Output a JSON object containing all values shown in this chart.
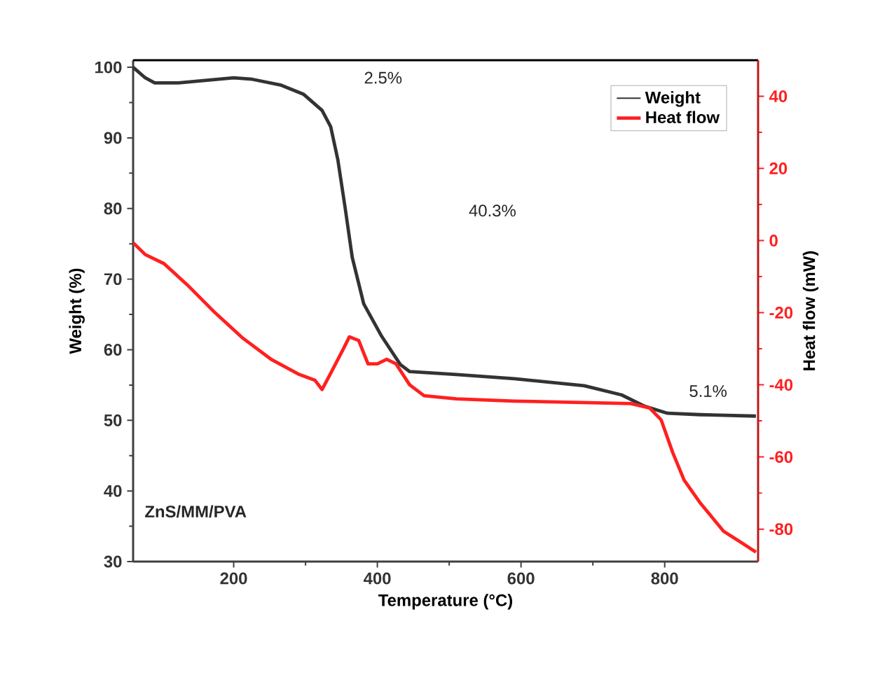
{
  "chart_data": {
    "type": "line",
    "xlabel": "Temperature (°C)",
    "ylabel": "Weight (%)",
    "y2label": "Heat flow (mW)",
    "xlim": [
      60,
      930
    ],
    "xticks": [
      200,
      400,
      600,
      800
    ],
    "ylim": [
      30,
      101
    ],
    "yticks": [
      30,
      40,
      50,
      60,
      70,
      80,
      90,
      100
    ],
    "y2lim": [
      -89,
      50
    ],
    "y2ticks": [
      -80,
      -60,
      -40,
      -20,
      0,
      20,
      40
    ],
    "legend": "top right",
    "annotations": [
      "2.5%",
      "40.3%",
      "5.1%",
      "**ZnS/MM/PVA**"
    ],
    "series": [
      {
        "name": "Weight",
        "color": "#333333",
        "x": [
          60,
          77,
          90,
          123,
          200,
          226,
          265,
          297,
          323,
          335,
          345,
          355,
          365,
          381,
          406,
          432,
          445,
          510,
          591,
          688,
          740,
          772,
          804,
          850,
          927
        ],
        "values": [
          100,
          98.5,
          97.8,
          97.8,
          98.5,
          98.3,
          97.5,
          96.2,
          93.9,
          91.6,
          86.9,
          80.2,
          73.1,
          66.5,
          61.9,
          57.9,
          56.9,
          56.5,
          55.9,
          54.9,
          53.6,
          52.0,
          51.0,
          50.8,
          50.6
        ]
      },
      {
        "name": "Heat flow",
        "color": "#ff2020",
        "axis": "y2",
        "x": [
          60,
          77,
          103,
          135,
          174,
          213,
          252,
          290,
          313,
          323,
          335,
          352,
          361,
          374,
          387,
          400,
          413,
          426,
          445,
          465,
          510,
          591,
          753,
          779,
          795,
          811,
          827,
          850,
          882,
          908,
          927
        ],
        "values": [
          -0.6,
          -3.9,
          -6.4,
          -12.2,
          -20,
          -27.1,
          -32.9,
          -37,
          -38.7,
          -41.3,
          -36.8,
          -30.3,
          -26.7,
          -27.7,
          -34.2,
          -34.2,
          -32.9,
          -34.2,
          -40,
          -43,
          -43.9,
          -44.5,
          -45.2,
          -46.4,
          -49.7,
          -58.7,
          -66.4,
          -72.9,
          -80.6,
          -83.9,
          -86.4
        ]
      }
    ]
  }
}
